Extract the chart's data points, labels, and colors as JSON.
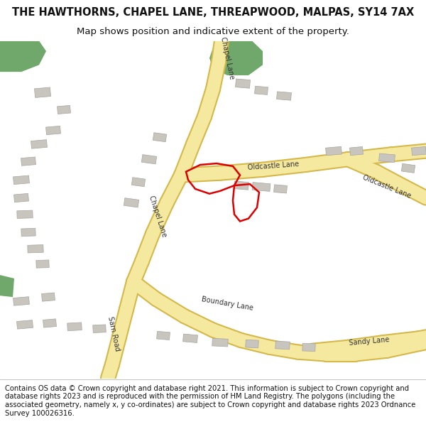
{
  "title": "THE HAWTHORNS, CHAPEL LANE, THREAPWOOD, MALPAS, SY14 7AX",
  "subtitle": "Map shows position and indicative extent of the property.",
  "footer": "Contains OS data © Crown copyright and database right 2021. This information is subject to Crown copyright and database rights 2023 and is reproduced with the permission of HM Land Registry. The polygons (including the associated geometry, namely x, y co-ordinates) are subject to Crown copyright and database rights 2023 Ordnance Survey 100026316.",
  "bg_color": "#ffffff",
  "map_bg": "#f2f0ec",
  "road_yellow_fill": "#f5e9a0",
  "road_yellow_border": "#d4b84a",
  "building_color": "#c8c5be",
  "building_edge": "#a8a5a0",
  "green_color": "#6fa86a",
  "red_color": "#dd0000",
  "title_fontsize": 10.5,
  "subtitle_fontsize": 9.5,
  "footer_fontsize": 7.2,
  "title_weight": "bold"
}
